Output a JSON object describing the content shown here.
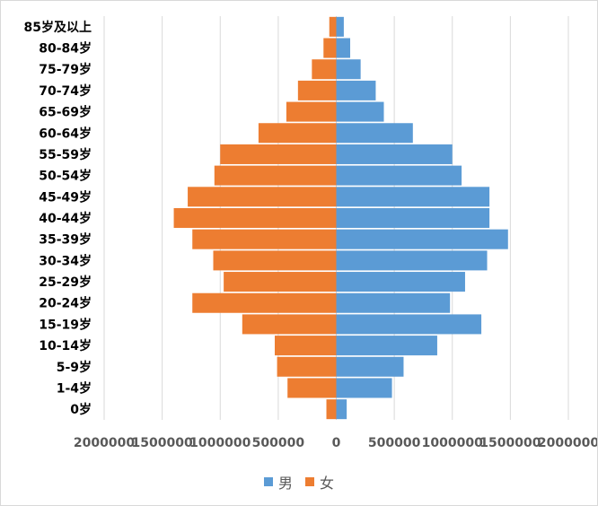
{
  "chart_data": {
    "type": "bar",
    "orientation": "horizontal",
    "layout": "population-pyramid",
    "categories": [
      "0岁",
      "1-4岁",
      "5-9岁",
      "10-14岁",
      "15-19岁",
      "20-24岁",
      "25-29岁",
      "30-34岁",
      "35-39岁",
      "40-44岁",
      "45-49岁",
      "50-54岁",
      "55-59岁",
      "60-64岁",
      "65-69岁",
      "70-74岁",
      "75-79岁",
      "80-84岁",
      "85岁及以上"
    ],
    "series": [
      {
        "name": "男",
        "color": "#5B9BD5",
        "side": "right",
        "values": [
          90000,
          480000,
          580000,
          870000,
          1250000,
          980000,
          1110000,
          1300000,
          1480000,
          1320000,
          1320000,
          1080000,
          1000000,
          660000,
          410000,
          340000,
          210000,
          120000,
          65000
        ]
      },
      {
        "name": "女",
        "color": "#ED7D31",
        "side": "left",
        "values": [
          85000,
          420000,
          510000,
          530000,
          810000,
          1240000,
          970000,
          1060000,
          1240000,
          1400000,
          1280000,
          1050000,
          1000000,
          670000,
          430000,
          330000,
          210000,
          110000,
          60000
        ]
      }
    ],
    "xlim": [
      -2000000,
      2000000
    ],
    "xticks": [
      -2000000,
      -1500000,
      -1000000,
      -500000,
      0,
      500000,
      1000000,
      1500000,
      2000000
    ],
    "xtick_labels": [
      "2000000",
      "1500000",
      "1000000",
      "500000",
      "0",
      "500000",
      "1000000",
      "1500000",
      "2000000"
    ],
    "grid": "vertical",
    "legend_position": "bottom",
    "title": "",
    "xlabel": "",
    "ylabel": ""
  }
}
